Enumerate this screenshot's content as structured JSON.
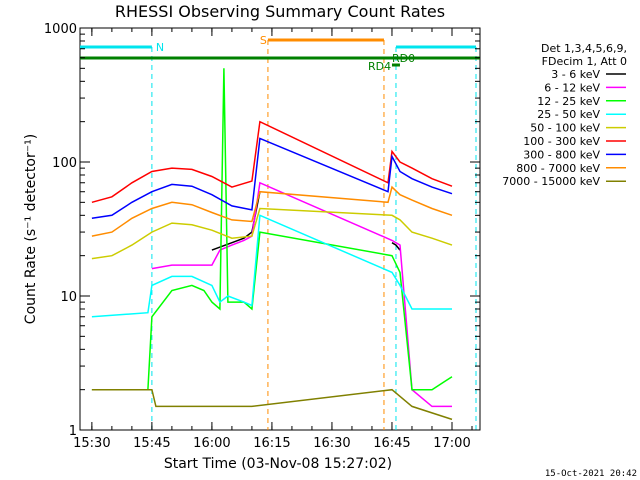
{
  "chart_data": {
    "type": "line",
    "title": "RHESSI Observing Summary Count Rates",
    "xlabel": "Start Time (03-Nov-08 15:27:02)",
    "ylabel": "Count Rate (s⁻¹ detector⁻¹)",
    "yscale": "log",
    "ylim": [
      1,
      1000
    ],
    "xlim": [
      "15:27:02",
      "17:07:00"
    ],
    "x_ticks": [
      "15:30",
      "15:45",
      "16:00",
      "16:15",
      "16:30",
      "16:45",
      "17:00"
    ],
    "y_ticks": [
      "1",
      "10",
      "100",
      "1000"
    ],
    "footer_date": "15-Oct-2021 20:42",
    "legend_header": [
      "Det 1,3,4,5,6,9,",
      "FDecim 1, Att 0"
    ],
    "flags": [
      {
        "label": "N",
        "color": "#00e5ee",
        "style": "solid"
      },
      {
        "label": "S",
        "color": "#ff8c00",
        "style": "solid"
      },
      {
        "label": "RD4",
        "color": "#008000",
        "style": "solid"
      },
      {
        "label": "RD0",
        "color": "#008000",
        "style": "solid"
      }
    ],
    "series": [
      {
        "name": "3 - 6 keV",
        "color": "#000000",
        "points": [
          [
            "15:30",
            null
          ],
          [
            "15:45",
            null
          ],
          [
            "16:00",
            22
          ],
          [
            "16:05",
            25
          ],
          [
            "16:08",
            27
          ],
          [
            "16:10",
            30
          ],
          [
            "16:12",
            60
          ],
          [
            "16:44",
            null
          ],
          [
            "16:45",
            25
          ],
          [
            "16:46",
            24
          ],
          [
            "16:47",
            22
          ]
        ]
      },
      {
        "name": "6 - 12 keV",
        "color": "#ff00ff",
        "points": [
          [
            "15:45",
            16
          ],
          [
            "15:50",
            17
          ],
          [
            "15:55",
            17
          ],
          [
            "16:00",
            17
          ],
          [
            "16:02",
            22
          ],
          [
            "16:05",
            24
          ],
          [
            "16:08",
            26
          ],
          [
            "16:10",
            28
          ],
          [
            "16:12",
            70
          ],
          [
            "16:45",
            26
          ],
          [
            "16:47",
            24
          ],
          [
            "16:50",
            2
          ],
          [
            "16:55",
            1.5
          ],
          [
            "17:00",
            1.5
          ]
        ]
      },
      {
        "name": "12 - 25 keV",
        "color": "#00ff00",
        "points": [
          [
            "15:30",
            2
          ],
          [
            "15:44",
            2
          ],
          [
            "15:45",
            7
          ],
          [
            "15:50",
            11
          ],
          [
            "15:55",
            12
          ],
          [
            "15:58",
            11
          ],
          [
            "16:00",
            9
          ],
          [
            "16:02",
            8
          ],
          [
            "16:03",
            500
          ],
          [
            "16:04",
            9
          ],
          [
            "16:08",
            9
          ],
          [
            "16:10",
            8
          ],
          [
            "16:12",
            30
          ],
          [
            "16:45",
            20
          ],
          [
            "16:47",
            15
          ],
          [
            "16:50",
            2
          ],
          [
            "16:55",
            2
          ],
          [
            "17:00",
            2.5
          ]
        ]
      },
      {
        "name": "25 - 50 keV",
        "color": "#00ffff",
        "points": [
          [
            "15:30",
            7
          ],
          [
            "15:44",
            7.5
          ],
          [
            "15:45",
            12
          ],
          [
            "15:50",
            14
          ],
          [
            "15:55",
            14
          ],
          [
            "16:00",
            12
          ],
          [
            "16:02",
            9
          ],
          [
            "16:04",
            10
          ],
          [
            "16:08",
            9
          ],
          [
            "16:10",
            8.5
          ],
          [
            "16:12",
            40
          ],
          [
            "16:45",
            15
          ],
          [
            "16:47",
            12
          ],
          [
            "16:50",
            8
          ],
          [
            "16:55",
            8
          ],
          [
            "17:00",
            8
          ]
        ]
      },
      {
        "name": "50 - 100 keV",
        "color": "#cccc00",
        "points": [
          [
            "15:30",
            19
          ],
          [
            "15:35",
            20
          ],
          [
            "15:40",
            24
          ],
          [
            "15:45",
            30
          ],
          [
            "15:50",
            35
          ],
          [
            "15:55",
            34
          ],
          [
            "16:00",
            31
          ],
          [
            "16:05",
            27
          ],
          [
            "16:10",
            28
          ],
          [
            "16:12",
            45
          ],
          [
            "16:45",
            40
          ],
          [
            "16:47",
            37
          ],
          [
            "16:50",
            30
          ],
          [
            "16:55",
            27
          ],
          [
            "17:00",
            24
          ]
        ]
      },
      {
        "name": "100 - 300 keV",
        "color": "#ff0000",
        "points": [
          [
            "15:30",
            50
          ],
          [
            "15:35",
            55
          ],
          [
            "15:40",
            70
          ],
          [
            "15:45",
            85
          ],
          [
            "15:50",
            90
          ],
          [
            "15:55",
            88
          ],
          [
            "16:00",
            78
          ],
          [
            "16:05",
            65
          ],
          [
            "16:10",
            72
          ],
          [
            "16:12",
            200
          ],
          [
            "16:44",
            70
          ],
          [
            "16:45",
            120
          ],
          [
            "16:47",
            100
          ],
          [
            "16:50",
            90
          ],
          [
            "16:55",
            75
          ],
          [
            "17:00",
            66
          ]
        ]
      },
      {
        "name": "300 - 800 keV",
        "color": "#0000ff",
        "points": [
          [
            "15:30",
            38
          ],
          [
            "15:35",
            40
          ],
          [
            "15:40",
            50
          ],
          [
            "15:45",
            60
          ],
          [
            "15:50",
            68
          ],
          [
            "15:55",
            66
          ],
          [
            "16:00",
            57
          ],
          [
            "16:05",
            47
          ],
          [
            "16:10",
            44
          ],
          [
            "16:12",
            150
          ],
          [
            "16:44",
            60
          ],
          [
            "16:45",
            110
          ],
          [
            "16:47",
            85
          ],
          [
            "16:50",
            75
          ],
          [
            "16:55",
            65
          ],
          [
            "17:00",
            58
          ]
        ]
      },
      {
        "name": "800 - 7000 keV",
        "color": "#ff8c00",
        "points": [
          [
            "15:30",
            28
          ],
          [
            "15:35",
            30
          ],
          [
            "15:40",
            38
          ],
          [
            "15:45",
            45
          ],
          [
            "15:50",
            50
          ],
          [
            "15:55",
            48
          ],
          [
            "16:00",
            42
          ],
          [
            "16:05",
            37
          ],
          [
            "16:10",
            36
          ],
          [
            "16:12",
            60
          ],
          [
            "16:44",
            50
          ],
          [
            "16:45",
            65
          ],
          [
            "16:47",
            57
          ],
          [
            "16:50",
            52
          ],
          [
            "16:55",
            45
          ],
          [
            "17:00",
            40
          ]
        ]
      },
      {
        "name": "7000 - 15000 keV",
        "color": "#808000",
        "points": [
          [
            "15:30",
            2
          ],
          [
            "15:45",
            2
          ],
          [
            "15:46",
            1.5
          ],
          [
            "16:00",
            1.5
          ],
          [
            "16:05",
            1.5
          ],
          [
            "16:10",
            1.5
          ],
          [
            "16:45",
            2
          ],
          [
            "16:50",
            1.5
          ],
          [
            "17:00",
            1.2
          ]
        ]
      }
    ]
  }
}
